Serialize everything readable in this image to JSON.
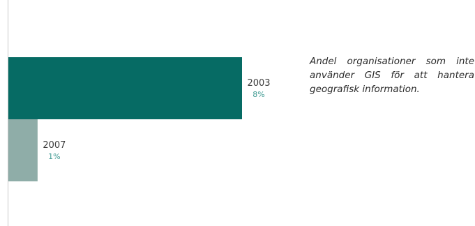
{
  "chart_data": {
    "type": "bar",
    "orientation": "horizontal",
    "categories": [
      "2003",
      "2007"
    ],
    "values": [
      8,
      1
    ],
    "value_labels": [
      "8%",
      "1%"
    ],
    "colors": [
      "#066b64",
      "#8fada8"
    ],
    "value_label_color": "#3f9a92",
    "title": "",
    "xlabel": "",
    "ylabel": "",
    "xlim": [
      0,
      8
    ],
    "grid": false,
    "legend": "none"
  },
  "caption": {
    "text": "Andel organisationer som inte använder GIS för att hantera geografisk information."
  }
}
